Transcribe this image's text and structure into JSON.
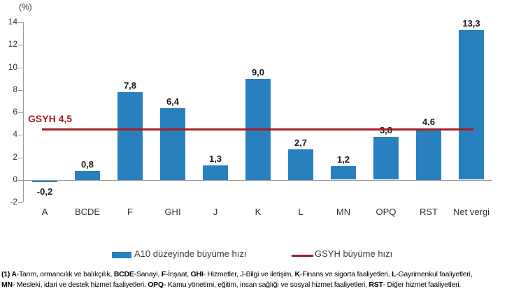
{
  "chart_data": {
    "type": "bar",
    "title": "",
    "unit_label": "(%)",
    "categories": [
      "A",
      "BCDE",
      "F",
      "GHI",
      "J",
      "K",
      "L",
      "MN",
      "OPQ",
      "RST",
      "Net vergi"
    ],
    "series": [
      {
        "name": "A10 düzeyinde büyüme hızı",
        "type": "bar",
        "color": "#2980BE",
        "values": [
          -0.2,
          0.8,
          7.8,
          6.4,
          1.3,
          9.0,
          2.7,
          1.2,
          3.8,
          4.6,
          13.3
        ],
        "value_labels": [
          "-0,2",
          "0,8",
          "7,8",
          "6,4",
          "1,3",
          "9,0",
          "2,7",
          "1,2",
          "3,8",
          "4,6",
          "13,3"
        ]
      },
      {
        "name": "GSYH büyüme hızı",
        "type": "line",
        "color": "#A51E23",
        "value": 4.5,
        "annotation": "GSYH 4,5"
      }
    ],
    "ylim": [
      -2,
      14
    ],
    "yticks": [
      14,
      12,
      10,
      8,
      6,
      4,
      2,
      0,
      -2
    ],
    "grid": false,
    "legend_position": "bottom",
    "axis_color": "#9B9B9B"
  },
  "legend": {
    "items": [
      {
        "label": "A10 düzeyinde büyüme hızı",
        "swatch": "bar",
        "color": "#2980BE"
      },
      {
        "label": "GSYH büyüme hızı",
        "swatch": "line",
        "color": "#A51E23"
      }
    ]
  },
  "footnote": {
    "lines": [
      [
        {
          "text": "(1) A",
          "bold": true
        },
        {
          "text": "-Tarım, ormancılık ve balıkçılık, ",
          "bold": false
        },
        {
          "text": "BCDE",
          "bold": true
        },
        {
          "text": "-Sanayi, ",
          "bold": false
        },
        {
          "text": "F",
          "bold": true
        },
        {
          "text": "-İnşaat, ",
          "bold": false
        },
        {
          "text": "GHI",
          "bold": true
        },
        {
          "text": "- Hizmetler, J-Bilgi ve iletişim, ",
          "bold": false
        },
        {
          "text": "K",
          "bold": true
        },
        {
          "text": "-Finans ve sigorta faaliyetleri, ",
          "bold": false
        },
        {
          "text": "L",
          "bold": true
        },
        {
          "text": "-Gayrimenkul faaliyetleri,",
          "bold": false
        }
      ],
      [
        {
          "text": "MN",
          "bold": true
        },
        {
          "text": "- Mesleki, idari ve destek hizmet faaliyetleri, ",
          "bold": false
        },
        {
          "text": "OPQ",
          "bold": true
        },
        {
          "text": "- Kamu yönetimi, eğitim, insan sağlığı ve sosyal hizmet faaliyetleri, ",
          "bold": false
        },
        {
          "text": "RST",
          "bold": true
        },
        {
          "text": "- Diğer hizmet faaliyetleri.",
          "bold": false
        }
      ]
    ]
  }
}
